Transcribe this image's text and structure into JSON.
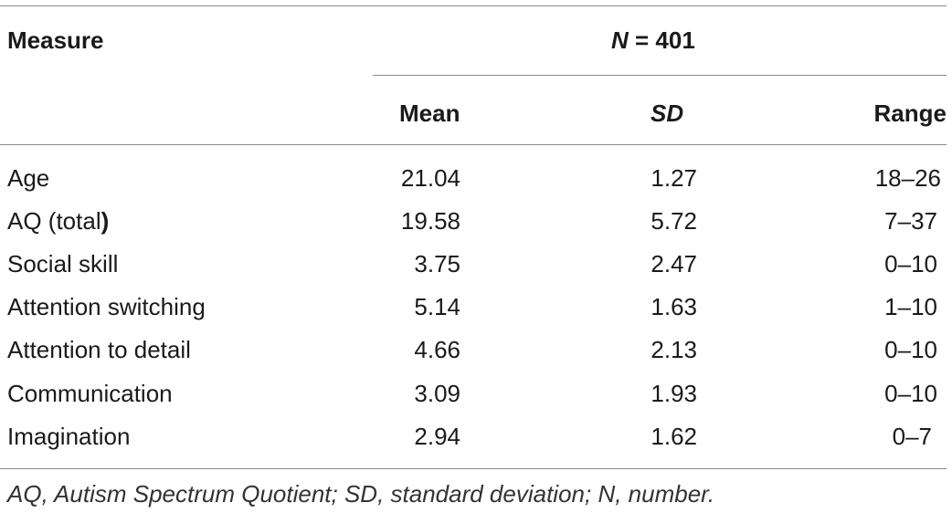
{
  "table": {
    "header": {
      "measure": "Measure",
      "n_label": "N",
      "n_value": " = 401",
      "mean": "Mean",
      "sd": "SD",
      "range": "Range"
    },
    "rows": [
      {
        "measure": "Age",
        "mean": "21.04",
        "sd": "1.27",
        "range": "18–26"
      },
      {
        "measure": "AQ (total",
        "measure_suffix": ")",
        "mean": "19.58",
        "sd": "5.72",
        "range": "7–37"
      },
      {
        "measure": "Social skill",
        "mean": "3.75",
        "sd": "2.47",
        "range": "0–10"
      },
      {
        "measure": "Attention switching",
        "mean": "5.14",
        "sd": "1.63",
        "range": "1–10"
      },
      {
        "measure": "Attention to detail",
        "mean": "4.66",
        "sd": "2.13",
        "range": "0–10"
      },
      {
        "measure": "Communication",
        "mean": "3.09",
        "sd": "1.93",
        "range": "0–10"
      },
      {
        "measure": "Imagination",
        "mean": "2.94",
        "sd": "1.62",
        "range": "0–7"
      }
    ],
    "footnote": "AQ, Autism Spectrum Quotient; SD, standard deviation; N, number."
  }
}
